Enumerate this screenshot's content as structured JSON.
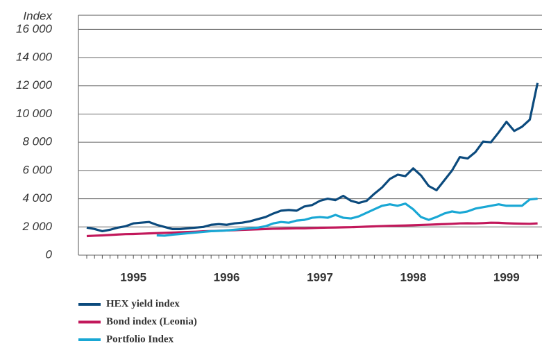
{
  "chart_data": {
    "type": "line",
    "y_label": "Index",
    "categories": [
      null,
      null,
      null,
      null,
      null,
      null,
      "1995",
      null,
      null,
      null,
      null,
      null,
      null,
      null,
      null,
      null,
      null,
      null,
      "1996",
      null,
      null,
      null,
      null,
      null,
      null,
      null,
      null,
      null,
      null,
      null,
      "1997",
      null,
      null,
      null,
      null,
      null,
      null,
      null,
      null,
      null,
      null,
      null,
      "1998",
      null,
      null,
      null,
      null,
      null,
      null,
      null,
      null,
      null,
      null,
      null,
      "1999",
      null,
      null,
      null,
      null
    ],
    "series": [
      {
        "name": "HEX yield index",
        "color": "#0b4a7d",
        "values": [
          1950,
          1850,
          1700,
          1800,
          1950,
          2050,
          2250,
          2300,
          2350,
          2150,
          2000,
          1850,
          1850,
          1900,
          1950,
          2000,
          2150,
          2200,
          2150,
          2250,
          2300,
          2400,
          2550,
          2700,
          2950,
          3150,
          3200,
          3150,
          3450,
          3550,
          3850,
          4000,
          3900,
          4200,
          3850,
          3700,
          3850,
          4350,
          4800,
          5400,
          5700,
          5600,
          6150,
          5650,
          4900,
          4600,
          5300,
          6000,
          6950,
          6850,
          7300,
          8050,
          8000,
          8700,
          9450,
          8800,
          9100,
          9600,
          12200
        ]
      },
      {
        "name": "Bond index (Leonia)",
        "color": "#c2185b",
        "values": [
          1350,
          1380,
          1400,
          1430,
          1460,
          1490,
          1500,
          1520,
          1540,
          1560,
          1580,
          1600,
          1620,
          1640,
          1660,
          1690,
          1710,
          1730,
          1750,
          1770,
          1790,
          1810,
          1830,
          1850,
          1870,
          1880,
          1890,
          1900,
          1900,
          1920,
          1940,
          1950,
          1960,
          1970,
          1980,
          2000,
          2020,
          2040,
          2060,
          2080,
          2090,
          2100,
          2120,
          2140,
          2160,
          2180,
          2200,
          2220,
          2250,
          2260,
          2250,
          2270,
          2300,
          2290,
          2260,
          2240,
          2230,
          2220,
          2250
        ]
      },
      {
        "name": "Portfolio Index",
        "color": "#19a7d4",
        "values": [
          null,
          null,
          null,
          null,
          null,
          null,
          null,
          null,
          null,
          1400,
          1380,
          1450,
          1500,
          1550,
          1600,
          1650,
          1700,
          1720,
          1750,
          1800,
          1850,
          1900,
          1950,
          2050,
          2250,
          2350,
          2300,
          2450,
          2500,
          2650,
          2700,
          2650,
          2850,
          2650,
          2600,
          2750,
          3000,
          3250,
          3500,
          3600,
          3500,
          3650,
          3250,
          2700,
          2500,
          2700,
          2950,
          3100,
          3000,
          3100,
          3300,
          3400,
          3500,
          3600,
          3500,
          3500,
          3500,
          3950,
          4000
        ]
      }
    ],
    "ylim": [
      0,
      17000
    ],
    "yticks": [
      0,
      {
        "value": 2000,
        "label": "2 000"
      },
      {
        "value": 4000,
        "label": "4 000"
      },
      {
        "value": 6000,
        "label": "6 000"
      },
      {
        "value": 8000,
        "label": "8 000"
      },
      {
        "value": 10000,
        "label": "10 000"
      },
      {
        "value": 12000,
        "label": "12 000"
      },
      {
        "value": 14000,
        "label": "14 000"
      },
      {
        "value": 16000,
        "label": "16 000"
      }
    ],
    "grid": true
  }
}
